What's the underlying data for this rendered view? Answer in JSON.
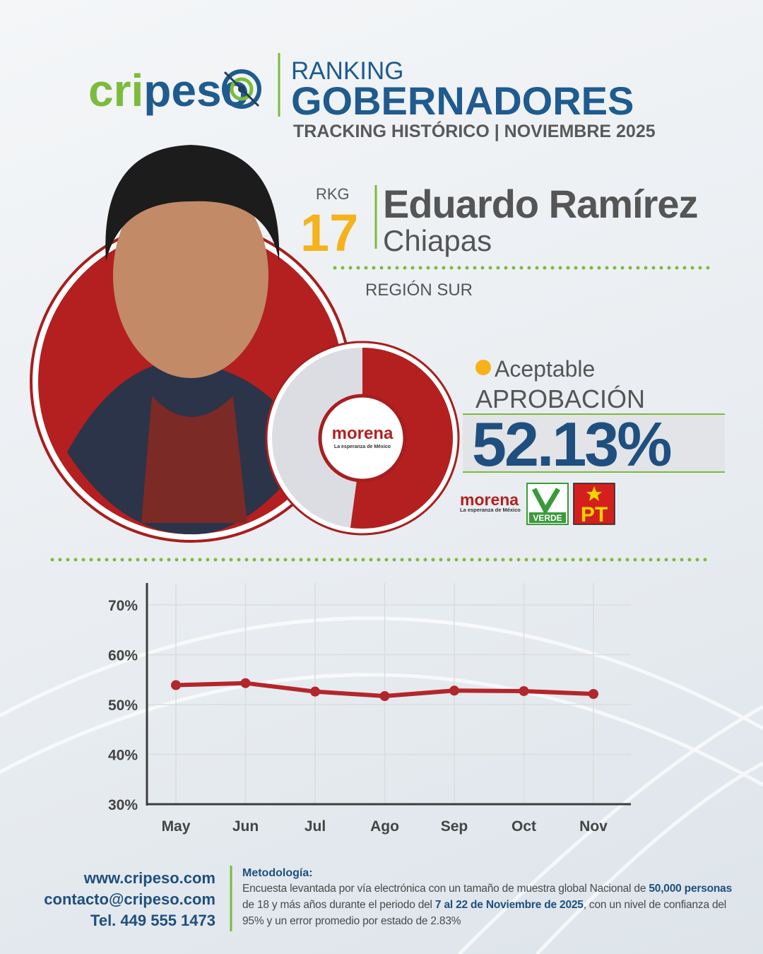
{
  "header": {
    "brand": {
      "part1": "cri",
      "part2": "peso"
    },
    "title_top": "RANKING",
    "title": "GOBERNADORES",
    "subtitle": "TRACKING HISTÓRICO | NOVIEMBRE 2025"
  },
  "candidate": {
    "rank_label": "RKG",
    "rank": 17,
    "name": "Eduardo Ramírez",
    "state": "Chiapas",
    "region": "REGIÓN SUR"
  },
  "approval": {
    "status": "Aceptable",
    "label": "APROBACIÓN",
    "value": 52.13,
    "value_label": "52.13%"
  },
  "parties": {
    "morena": "morena",
    "morena_tagline": "La esperanza de México",
    "verde": "VERDE",
    "pt": "PT"
  },
  "chart_data": {
    "type": "line",
    "categories": [
      "May",
      "Jun",
      "Jul",
      "Ago",
      "Sep",
      "Oct",
      "Nov"
    ],
    "series": [
      {
        "name": "Aprobación",
        "color": "#b3262b",
        "values": [
          53.9,
          54.3,
          52.6,
          51.7,
          52.8,
          52.7,
          52.13
        ]
      }
    ],
    "ylim": [
      30,
      74.4
    ],
    "yticks": [
      {
        "value": 30,
        "label": "30%"
      },
      {
        "value": 40,
        "label": "40%"
      },
      {
        "value": 50,
        "label": "50%"
      },
      {
        "value": 60,
        "label": "60%"
      },
      {
        "value": 70,
        "label": "70%"
      }
    ],
    "grid": true
  },
  "footer": {
    "website": "www.cripeso.com",
    "email": "contacto@cripeso.com",
    "phone": "Tel. 449 555 1473",
    "methodology_title": "Metodología:",
    "methodology": [
      "Encuesta levantada por vía electrónica con un tamaño de muestra global Nacional de ",
      "50,000 personas",
      " de 18 y más años durante el periodo del ",
      "7 al 22 de Noviembre de 2025",
      ", con un nivel de confianza del 95% y un error promedio por estado de 2.83%"
    ]
  }
}
